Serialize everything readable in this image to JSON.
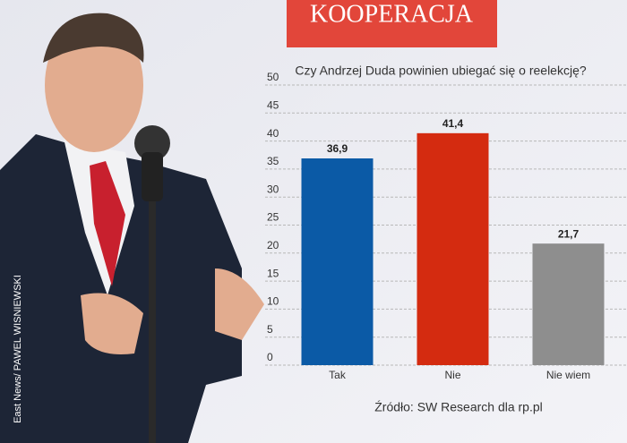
{
  "banner": "KOOPERACJA",
  "photo_credit": "East News/ PAWEL WISNIEWSKI",
  "chart_data": {
    "type": "bar",
    "title": "Czy Andrzej Duda powinien ubiegać się o reelekcję?",
    "source": "Źródło: SW Research dla rp.pl",
    "categories": [
      "Tak",
      "Nie",
      "Nie wiem"
    ],
    "values": [
      36.9,
      41.4,
      21.7
    ],
    "value_labels": [
      "36,9",
      "41,4",
      "21,7"
    ],
    "colors": [
      "#0b5aa6",
      "#d42b10",
      "#8e8e8e"
    ],
    "ylim": [
      0,
      50
    ],
    "yticks": [
      0,
      5,
      10,
      15,
      20,
      25,
      30,
      35,
      40,
      45,
      50
    ],
    "grid": true
  }
}
